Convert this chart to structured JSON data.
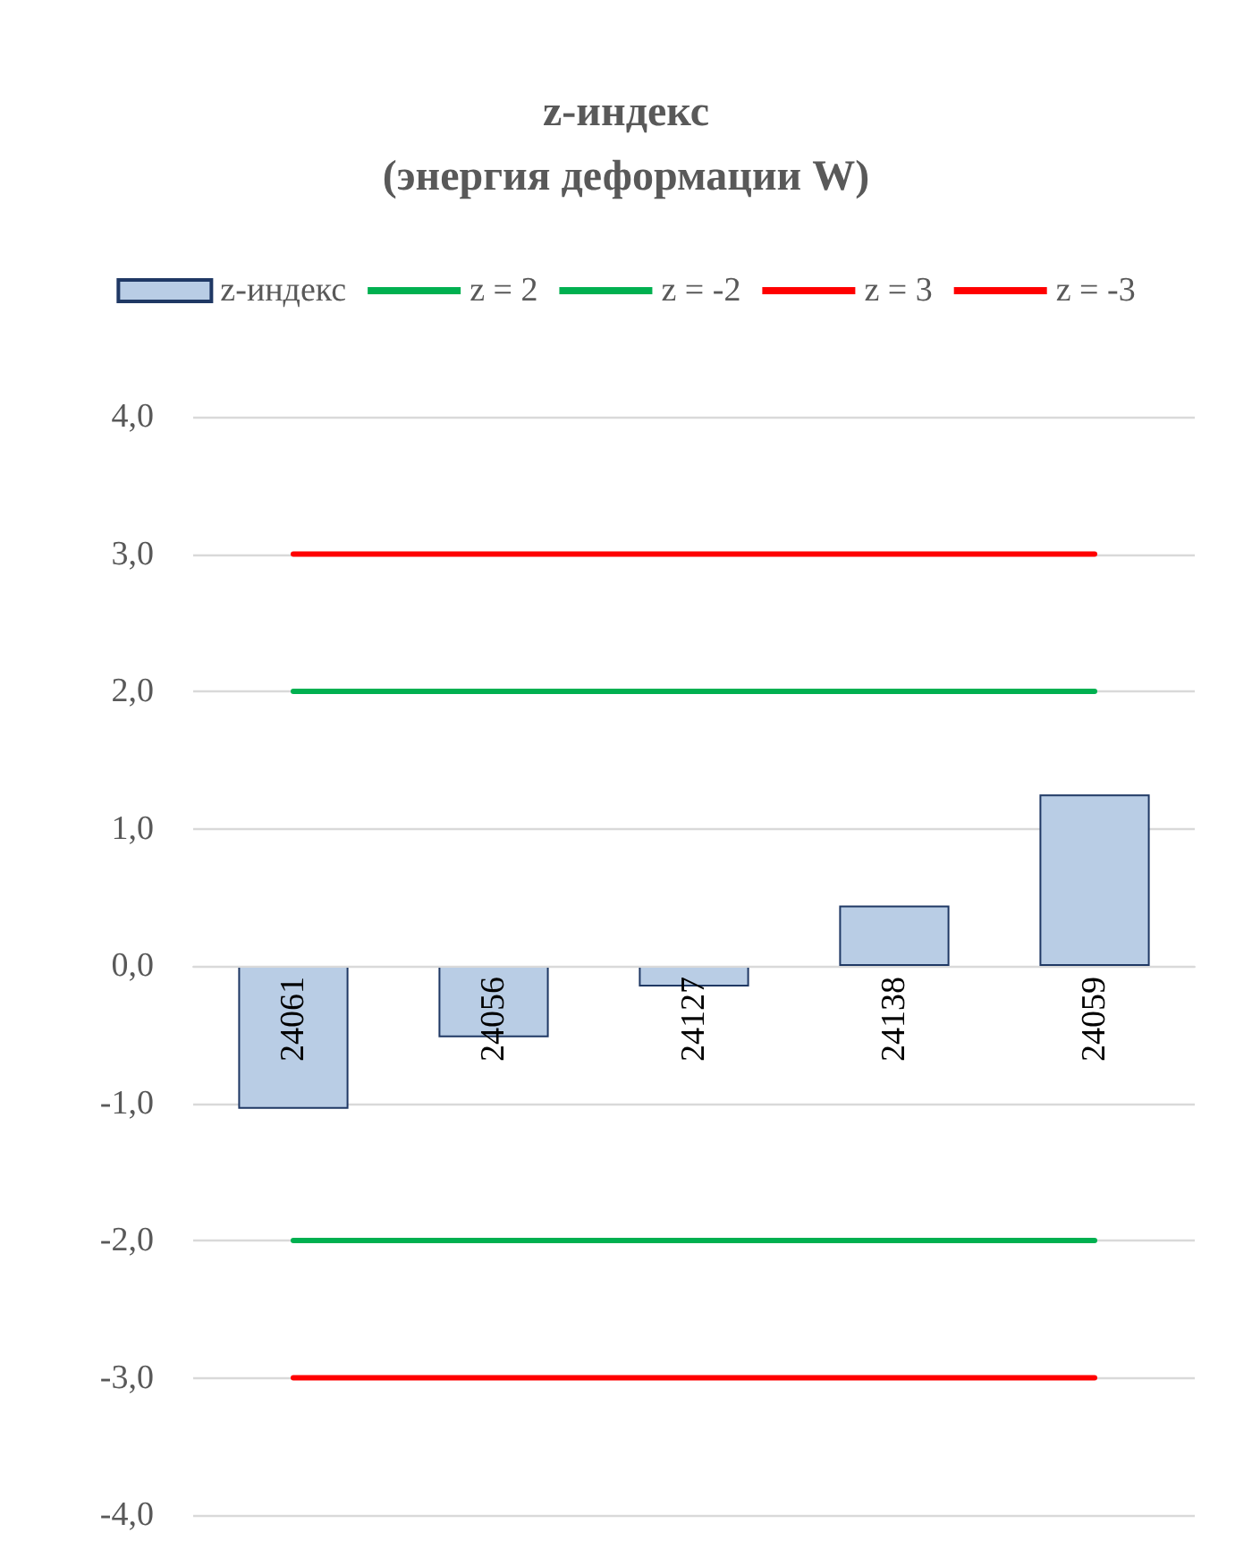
{
  "chart_data": {
    "type": "bar",
    "title": "z-индекс\n(энергия деформации W)",
    "categories": [
      "24061",
      "24056",
      "24127",
      "24138",
      "24059"
    ],
    "series": [
      {
        "name": "z-индекс",
        "color": "#b9cde5",
        "values": [
          -1.04,
          -0.52,
          -0.15,
          0.44,
          1.25
        ]
      },
      {
        "name": "z = 2",
        "type": "line",
        "color": "#00b050",
        "values": [
          2,
          2,
          2,
          2,
          2
        ]
      },
      {
        "name": "z = -2",
        "type": "line",
        "color": "#00b050",
        "values": [
          -2,
          -2,
          -2,
          -2,
          -2
        ]
      },
      {
        "name": "z = 3",
        "type": "line",
        "color": "#ff0000",
        "values": [
          3,
          3,
          3,
          3,
          3
        ]
      },
      {
        "name": "z = -3",
        "type": "line",
        "color": "#ff0000",
        "values": [
          -3,
          -3,
          -3,
          -3,
          -3
        ]
      }
    ],
    "ylim": [
      -4,
      4
    ],
    "yticks": [
      {
        "value": -4,
        "label": "-4,0"
      },
      {
        "value": -3,
        "label": "-3,0"
      },
      {
        "value": -2,
        "label": "-2,0"
      },
      {
        "value": -1,
        "label": "-1,0"
      },
      {
        "value": 0,
        "label": "0,0"
      },
      {
        "value": 1,
        "label": "1,0"
      },
      {
        "value": 2,
        "label": "2,0"
      },
      {
        "value": 3,
        "label": "3,0"
      },
      {
        "value": 4,
        "label": "4,0"
      }
    ],
    "grid": "y",
    "legend": "top",
    "marker": "none"
  }
}
